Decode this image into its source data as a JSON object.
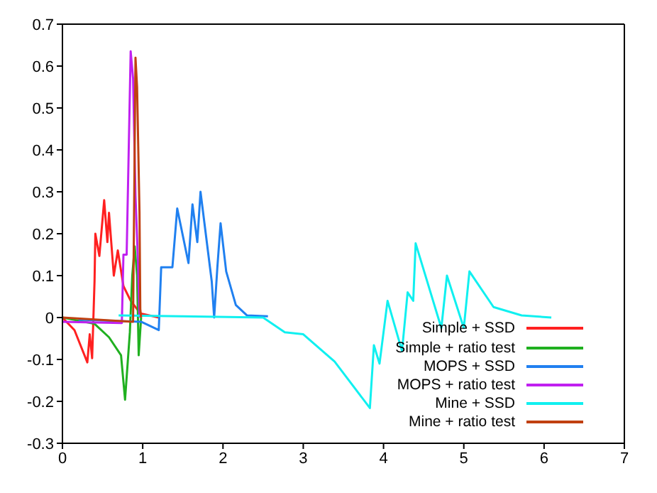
{
  "chart_data": {
    "type": "line",
    "xlim": [
      0,
      7
    ],
    "ylim": [
      -0.3,
      0.7
    ],
    "xticks": [
      0,
      1,
      2,
      3,
      4,
      5,
      6,
      7
    ],
    "yticks": [
      -0.3,
      -0.2,
      -0.1,
      0,
      0.1,
      0.2,
      0.3,
      0.4,
      0.5,
      0.6,
      0.7
    ],
    "grid": false,
    "legend": "bottom right",
    "marker": "none",
    "line_style": "solid",
    "series": [
      {
        "name": "Simple + SSD",
        "color": "#ff2020",
        "x": [
          0,
          0.15,
          0.31,
          0.34,
          0.37,
          0.4,
          0.41,
          0.46,
          0.52,
          0.56,
          0.58,
          0.64,
          0.69,
          0.76,
          0.85,
          0.97,
          1.2
        ],
        "values": [
          0,
          -0.03,
          -0.107,
          -0.04,
          -0.097,
          0.087,
          0.2,
          0.147,
          0.28,
          0.18,
          0.25,
          0.1,
          0.16,
          0.075,
          0.04,
          0.01,
          0
        ]
      },
      {
        "name": "Simple + ratio test",
        "color": "#20b020",
        "x": [
          0,
          0.4,
          0.58,
          0.73,
          0.78,
          0.84,
          0.87,
          0.9,
          0.93,
          0.95,
          0.98
        ],
        "values": [
          0,
          -0.015,
          -0.047,
          -0.09,
          -0.196,
          -0.035,
          0.1,
          0.17,
          0.1,
          -0.09,
          0
        ]
      },
      {
        "name": "MOPS + SSD",
        "color": "#2080f0",
        "x": [
          0.2,
          0.98,
          1.2,
          1.23,
          1.37,
          1.43,
          1.57,
          1.62,
          1.68,
          1.72,
          1.86,
          1.89,
          1.93,
          1.97,
          2.04,
          2.16,
          2.3,
          2.56
        ],
        "values": [
          -0.005,
          -0.01,
          -0.03,
          0.12,
          0.12,
          0.26,
          0.13,
          0.27,
          0.18,
          0.3,
          0.086,
          0,
          0.12,
          0.225,
          0.11,
          0.03,
          0.005,
          0.003
        ]
      },
      {
        "name": "MOPS + ratio test",
        "color": "#c020f0",
        "x": [
          0,
          0.74,
          0.76,
          0.8,
          0.85,
          0.88,
          0.91,
          0.94,
          0.96
        ],
        "values": [
          -0.01,
          -0.013,
          0.15,
          0.15,
          0.635,
          0.57,
          0.29,
          0.14,
          0
        ]
      },
      {
        "name": "Mine + SSD",
        "color": "#10f0f0",
        "x": [
          0.7,
          1.5,
          2.5,
          2.77,
          3.0,
          3.39,
          3.83,
          3.88,
          3.95,
          4.05,
          4.23,
          4.3,
          4.37,
          4.4,
          4.72,
          4.79,
          5.0,
          5.07,
          5.37,
          5.72,
          6.09
        ],
        "values": [
          0.005,
          0.003,
          0,
          -0.035,
          -0.04,
          -0.105,
          -0.216,
          -0.066,
          -0.11,
          0.04,
          -0.08,
          0.06,
          0.04,
          0.177,
          -0.025,
          0.1,
          -0.025,
          0.11,
          0.025,
          0.005,
          0
        ]
      },
      {
        "name": "Mine + ratio test",
        "color": "#c04010",
        "x": [
          0,
          0.88,
          0.91,
          0.93,
          0.96,
          0.97,
          0.98
        ],
        "values": [
          0,
          -0.01,
          0.62,
          0.55,
          0.25,
          0.02,
          0
        ]
      }
    ]
  }
}
